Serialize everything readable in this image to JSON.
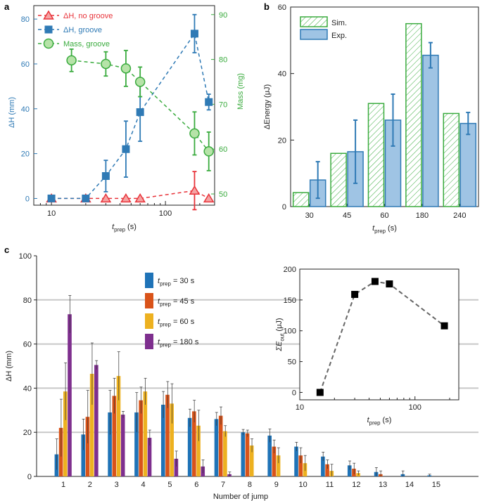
{
  "chart_data": [
    {
      "panel": "a",
      "type": "line",
      "xscale": "log",
      "xlim": [
        7,
        270
      ],
      "x_ticks": [
        10,
        100
      ],
      "xlabel_base": "t",
      "xlabel_sub": "prep",
      "xlabel_unit": " (s)",
      "ylabel_left": "ΔH (mm)",
      "ylim_left": [
        -3,
        86
      ],
      "y_ticks_left": [
        0,
        20,
        40,
        60,
        80
      ],
      "ylabel_right": "Mass (mg)",
      "ylim_right": [
        47.5,
        92
      ],
      "y_ticks_right": [
        50,
        60,
        70,
        80,
        90
      ],
      "legend": [
        {
          "name": "ΔH, no groove",
          "color": "#e8333a",
          "marker": "triangle"
        },
        {
          "name": "ΔH, groove",
          "color": "#2f7ab5",
          "marker": "square"
        },
        {
          "name": "Mass, groove",
          "color": "#3aab3e",
          "marker": "circle"
        }
      ],
      "series": [
        {
          "name": "ΔH, no groove",
          "axis": "left",
          "color": "#e8333a",
          "marker": "triangle",
          "x": [
            10,
            20,
            30,
            45,
            60,
            180,
            240
          ],
          "y": [
            0,
            0,
            0,
            0,
            0,
            3.5,
            0
          ],
          "err": [
            0,
            0,
            0,
            0,
            0,
            8.5,
            0
          ]
        },
        {
          "name": "ΔH, groove",
          "axis": "left",
          "color": "#2f7ab5",
          "marker": "square",
          "x": [
            10,
            20,
            30,
            45,
            60,
            180,
            240
          ],
          "y": [
            0,
            0,
            10,
            22,
            38.5,
            73.5,
            43
          ],
          "err": [
            0,
            0,
            7,
            12.5,
            13,
            8.5,
            3.5
          ]
        },
        {
          "name": "Mass, groove",
          "axis": "right",
          "color": "#3aab3e",
          "marker": "circle",
          "x": [
            15,
            30,
            45,
            60,
            180,
            240
          ],
          "y": [
            79.8,
            79,
            78,
            75,
            63.5,
            59.5
          ],
          "err": [
            2.5,
            2.7,
            4,
            3.3,
            4.8,
            4.3
          ]
        }
      ]
    },
    {
      "panel": "b",
      "type": "bar",
      "categories": [
        "30",
        "45",
        "60",
        "180",
        "240"
      ],
      "xlabel_base": "t",
      "xlabel_sub": "prep",
      "xlabel_unit": " (s)",
      "ylabel": "ΔEnergy (μJ)",
      "ylim": [
        0,
        60
      ],
      "y_ticks": [
        0,
        20,
        40,
        60
      ],
      "legend": [
        "Sim.",
        "Exp."
      ],
      "series": [
        {
          "name": "Sim.",
          "color": "#3aab3e",
          "style": "hatched",
          "values": [
            4.2,
            16,
            31,
            55,
            28
          ]
        },
        {
          "name": "Exp.",
          "color": "#2f7ab5",
          "fill": "#9fc4e4",
          "values": [
            8,
            16.5,
            26,
            45.5,
            25
          ],
          "err": [
            5.5,
            9.5,
            7.8,
            3.8,
            3.3
          ]
        }
      ]
    },
    {
      "panel": "c",
      "type": "bar",
      "categories": [
        "1",
        "2",
        "3",
        "4",
        "5",
        "6",
        "7",
        "8",
        "9",
        "10",
        "11",
        "12",
        "13",
        "14",
        "15"
      ],
      "xlabel": "Number of jump",
      "ylabel": "ΔH (mm)",
      "ylim": [
        0,
        100
      ],
      "y_ticks": [
        0,
        20,
        40,
        60,
        80,
        100
      ],
      "legend_prefix": "t",
      "legend_sub": "prep",
      "series": [
        {
          "name": "= 30 s",
          "color": "#1f73b7",
          "values": [
            10,
            19,
            29,
            29,
            32.5,
            26.5,
            26,
            20,
            18.5,
            13.5,
            9,
            5,
            2,
            1,
            0.5
          ],
          "err": [
            7,
            7,
            10,
            9,
            6,
            4,
            3,
            1.3,
            3,
            2,
            2,
            2,
            2,
            1.5,
            0.5
          ]
        },
        {
          "name": "= 45 s",
          "color": "#d95319",
          "values": [
            22,
            27,
            36.5,
            34.5,
            37,
            29.5,
            27.5,
            19.5,
            13.5,
            9.5,
            5.5,
            3.5,
            1,
            0,
            0
          ],
          "err": [
            13,
            12,
            8,
            6,
            6,
            5,
            4,
            1.5,
            3,
            3.5,
            2,
            2.5,
            1.5,
            0,
            0
          ]
        },
        {
          "name": "= 60 s",
          "color": "#edb120",
          "values": [
            38.5,
            46.5,
            45.5,
            38.5,
            33,
            23,
            20.5,
            14,
            9.5,
            6,
            2.5,
            1.5,
            0,
            0,
            0
          ],
          "err": [
            13,
            14,
            11,
            6,
            9,
            7,
            2.5,
            3,
            3.5,
            3.5,
            3,
            1,
            0,
            0,
            0
          ]
        },
        {
          "name": "= 180 s",
          "color": "#7e2f8e",
          "values": [
            73.5,
            50.5,
            28,
            17.5,
            8,
            4.5,
            1,
            0,
            0,
            0,
            0,
            0,
            0,
            0,
            0
          ],
          "err": [
            8.5,
            2,
            1.5,
            3.5,
            3.5,
            3,
            1,
            0,
            0,
            0,
            0,
            0,
            0,
            0,
            0
          ]
        }
      ]
    },
    {
      "panel": "c-inset",
      "type": "scatter",
      "xscale": "log",
      "xlim": [
        10,
        240
      ],
      "x_ticks": [
        10,
        100
      ],
      "xlabel_base": "t",
      "xlabel_sub": "prep",
      "xlabel_unit": " (s)",
      "ylabel_base": "ΣE",
      "ylabel_sub": "out",
      "ylabel_unit": " (μJ)",
      "ylim": [
        -12,
        200
      ],
      "y_ticks": [
        0,
        50,
        100,
        150,
        200
      ],
      "x": [
        15,
        30,
        45,
        60,
        180
      ],
      "y": [
        0,
        159,
        180,
        176,
        108
      ]
    }
  ],
  "panel_labels": [
    "a",
    "b",
    "c"
  ],
  "colors": {
    "gridline": "#c8c8c8",
    "axis": "#222222",
    "dash": "#666666"
  }
}
